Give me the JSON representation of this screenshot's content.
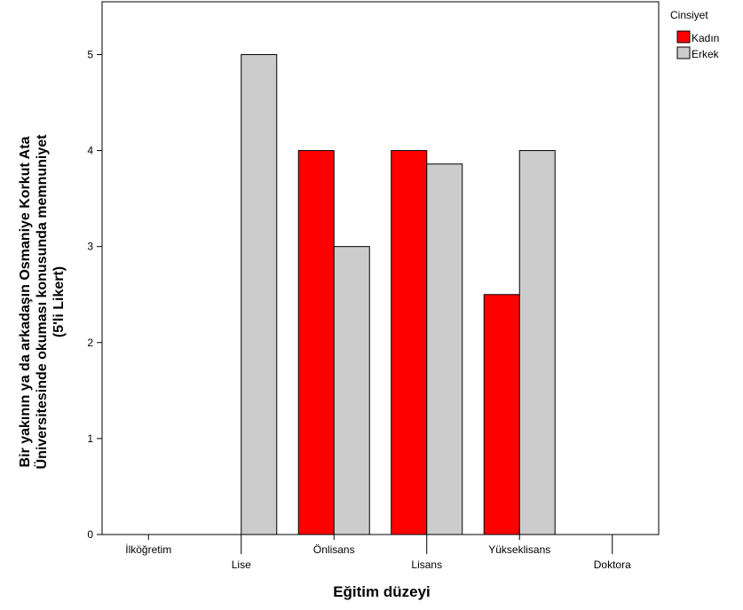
{
  "chart_data": {
    "type": "bar",
    "xlabel": "Eğitim düzeyi",
    "ylabel": [
      "Bir yakının ya da arkadaşın Osmaniye Korkut Ata",
      "Üniversitesinde okuması konusunda memnuniyet",
      "(5'li Likert)"
    ],
    "categories": [
      "İlköğretim",
      "Lise",
      "Önlisans",
      "Lisans",
      "Yükseklisans",
      "Doktora"
    ],
    "series": [
      {
        "name": "Kadın",
        "color": "#ff0000",
        "values": [
          null,
          null,
          4,
          4,
          2.5,
          null
        ]
      },
      {
        "name": "Erkek",
        "color": "#cccccc",
        "values": [
          null,
          5,
          3,
          3.86,
          4,
          null
        ]
      }
    ],
    "ylim": [
      0,
      5.55
    ],
    "yticks": [
      0,
      1,
      2,
      3,
      4,
      5
    ],
    "legend": {
      "title": "Cinsiyet",
      "position": "right"
    },
    "grid": false
  }
}
